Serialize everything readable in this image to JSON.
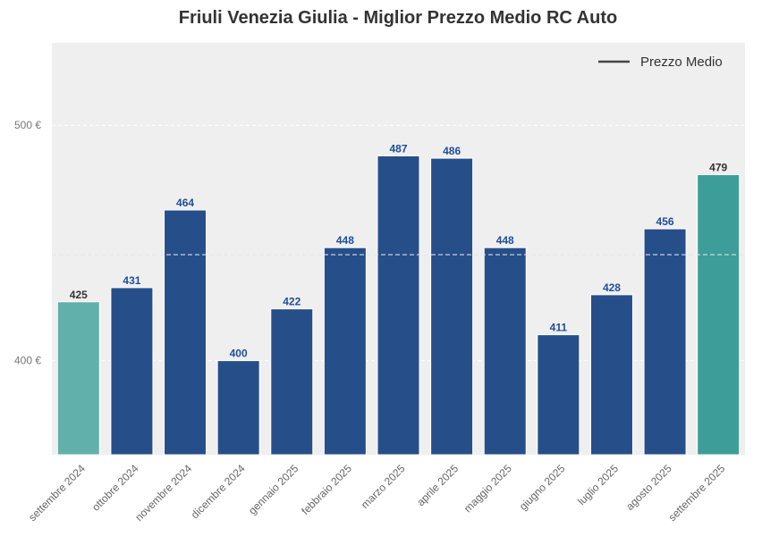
{
  "chart_data": {
    "type": "bar",
    "title": "Friuli Venezia Giulia - Miglior Prezzo Medio RC Auto",
    "xlabel": "",
    "ylabel": "",
    "ylim": [
      360,
      535
    ],
    "yticks": [
      400,
      500
    ],
    "ytick_labels": [
      "400 €",
      "500 €"
    ],
    "grid": true,
    "categories": [
      "settembre 2024",
      "ottobre 2024",
      "novembre 2024",
      "dicembre 2024",
      "gennaio 2025",
      "febbraio 2025",
      "marzo 2025",
      "aprile 2025",
      "maggio 2025",
      "giugno 2025",
      "luglio 2025",
      "agosto 2025",
      "settembre 2025"
    ],
    "values": [
      425,
      431,
      464,
      400,
      422,
      448,
      487,
      486,
      448,
      411,
      428,
      456,
      479
    ],
    "bar_colors": [
      "#62b0ab",
      "#264f8a",
      "#264f8a",
      "#264f8a",
      "#264f8a",
      "#264f8a",
      "#264f8a",
      "#264f8a",
      "#264f8a",
      "#264f8a",
      "#264f8a",
      "#264f8a",
      "#3d9e99"
    ],
    "label_colors": [
      "#333333",
      "#1f4e99",
      "#1f4e99",
      "#1f4e99",
      "#1f4e99",
      "#1f4e99",
      "#1f4e99",
      "#1f4e99",
      "#1f4e99",
      "#1f4e99",
      "#1f4e99",
      "#1f4e99",
      "#333333"
    ],
    "mean_line": {
      "label": "Prezzo Medio",
      "value": 445
    },
    "legend_position": "top-right",
    "plot_background": "#efefef"
  }
}
